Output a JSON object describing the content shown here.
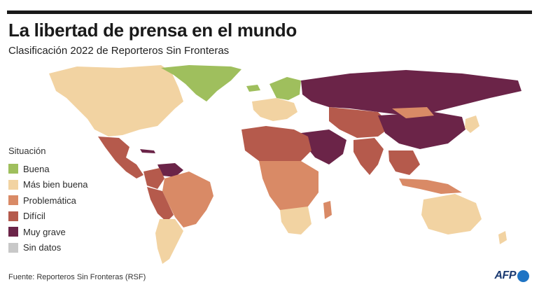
{
  "header": {
    "title": "La libertad de prensa en el mundo",
    "subtitle": "Clasificación 2022 de Reporteros Sin Fronteras"
  },
  "legend": {
    "title": "Situación",
    "items": [
      {
        "label": "Buena",
        "color": "#9fbf5d"
      },
      {
        "label": "Más bien buena",
        "color": "#f2d3a2"
      },
      {
        "label": "Problemática",
        "color": "#d98a66"
      },
      {
        "label": "Difícil",
        "color": "#b55a4c"
      },
      {
        "label": "Muy grave",
        "color": "#6b2448"
      },
      {
        "label": "Sin datos",
        "color": "#c8c8c8"
      }
    ]
  },
  "footer": {
    "source": "Fuente: Reporteros Sin Fronteras (RSF)",
    "logo": "AFP"
  }
}
